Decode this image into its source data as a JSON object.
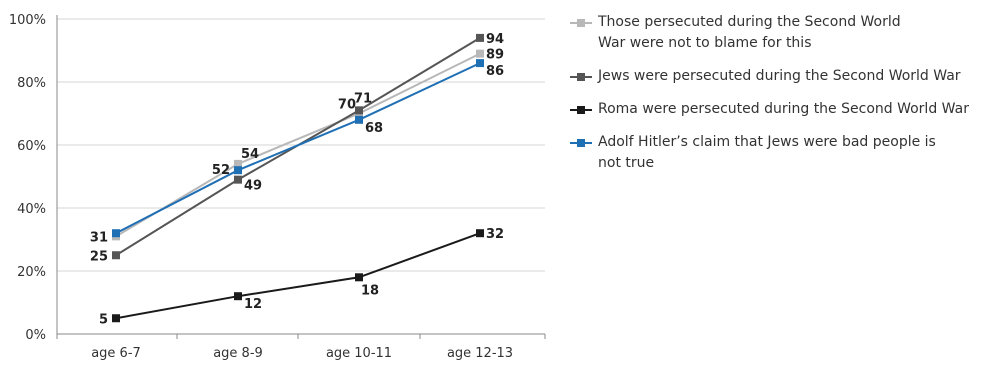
{
  "chart_data": {
    "type": "line",
    "title": "",
    "xlabel": "",
    "ylabel": "",
    "categories": [
      "age 6-7",
      "age 8-9",
      "age 10-11",
      "age 12-13"
    ],
    "ylim": [
      0,
      100
    ],
    "yticks": [
      0,
      20,
      40,
      60,
      80,
      100
    ],
    "ytick_labels": [
      "0%",
      "20%",
      "40%",
      "60%",
      "80%",
      "100%"
    ],
    "grid": true,
    "legend_position": "right",
    "series": [
      {
        "name": "Those persecuted during the Second World War were not to blame for this",
        "values": [
          31,
          54,
          70,
          89
        ],
        "color": "#b8b8b8",
        "labels": [
          "31",
          "54",
          "70",
          "89"
        ]
      },
      {
        "name": "Jews were persecuted during the Second World War",
        "values": [
          25,
          49,
          71,
          94
        ],
        "color": "#555555",
        "labels": [
          "25",
          "49",
          "71",
          "94"
        ]
      },
      {
        "name": "Roma were persecuted during the Second World War",
        "values": [
          5,
          12,
          18,
          32
        ],
        "color": "#1a1a1a",
        "labels": [
          "5",
          "12",
          "18",
          "32"
        ]
      },
      {
        "name": "Adolf Hitler’s claim that Jews were bad people is not true",
        "values": [
          32,
          52,
          68,
          86
        ],
        "color": "#1f6fb5",
        "labels": [
          "",
          "52",
          "68",
          "86"
        ]
      }
    ]
  }
}
